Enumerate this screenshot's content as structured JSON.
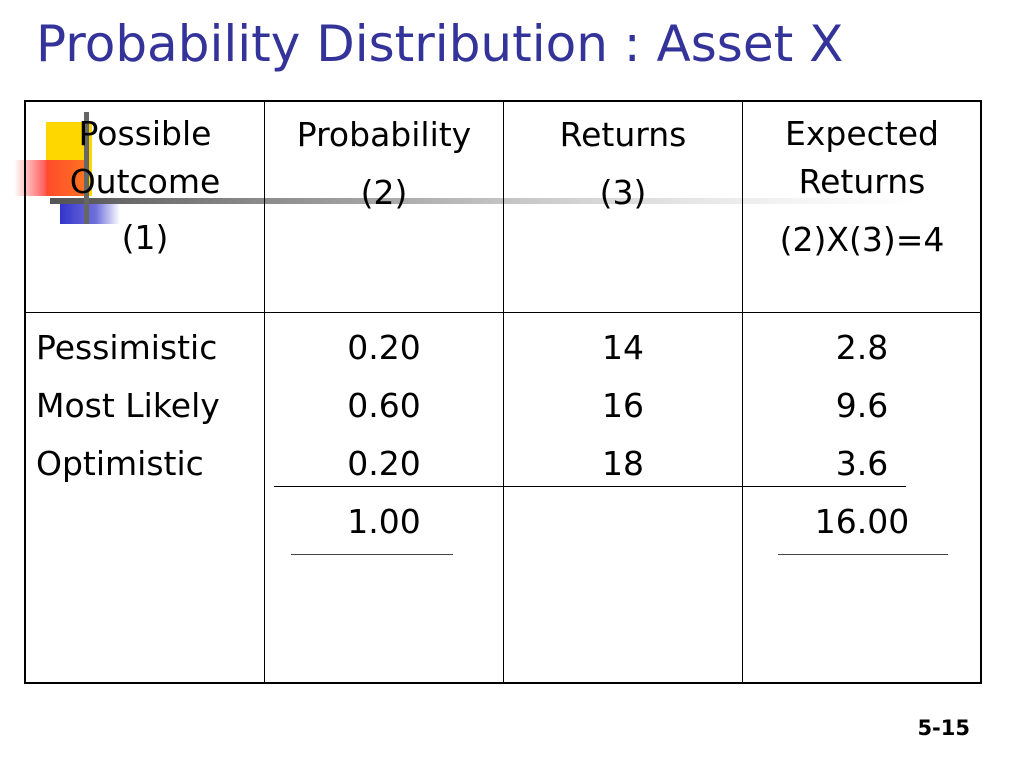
{
  "slide": {
    "title": "Probability Distribution : Asset X",
    "slide_number": "5-15"
  },
  "table": {
    "headers": {
      "outcome": [
        "Possible",
        "Outcome",
        "(1)"
      ],
      "probability": [
        "Probability",
        "(2)"
      ],
      "returns": [
        "Returns",
        "(3)"
      ],
      "expected": [
        "Expected",
        "Returns",
        "(2)X(3)=4"
      ]
    },
    "rows": [
      {
        "outcome": "Pessimistic",
        "probability": "0.20",
        "returns": "14",
        "expected": "2.8"
      },
      {
        "outcome": "Most Likely",
        "probability": "0.60",
        "returns": "16",
        "expected": "9.6"
      },
      {
        "outcome": "Optimistic",
        "probability": "0.20",
        "returns": "18",
        "expected": "3.6"
      }
    ],
    "totals": {
      "probability": "1.00",
      "expected": "16.00"
    }
  },
  "colors": {
    "title": "#333399",
    "decor_yellow": "#ffd700",
    "decor_red": "#ff3333",
    "decor_blue": "#3333cc"
  }
}
